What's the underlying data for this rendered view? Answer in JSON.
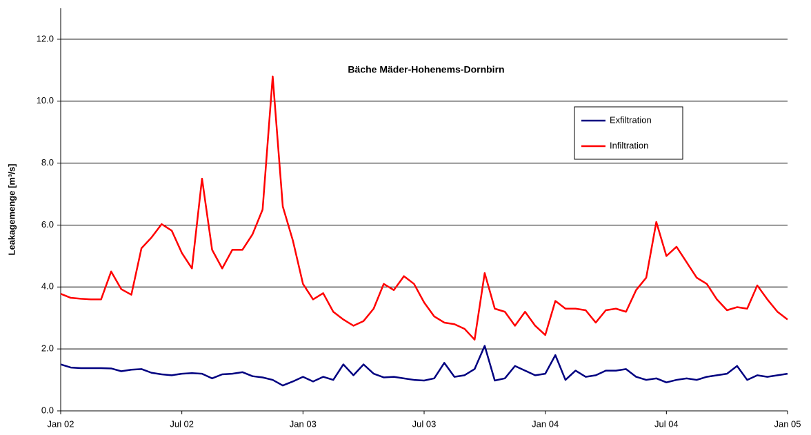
{
  "chart_data": {
    "type": "line",
    "title": "Bäche Mäder-Hohenems-Dornbirn",
    "y_label": "Leakagemenge [m³/s]",
    "x": [
      0,
      0.5,
      1,
      1.5,
      2,
      2.5,
      3,
      3.5,
      4,
      4.5,
      5,
      5.5,
      6,
      6.5,
      7,
      7.5,
      8,
      8.5,
      9,
      9.5,
      10,
      10.5,
      11,
      11.5,
      12,
      12.5,
      13,
      13.5,
      14,
      14.5,
      15,
      15.5,
      16,
      16.5,
      17,
      17.5,
      18,
      18.5,
      19,
      19.5,
      20,
      20.5,
      21,
      21.5,
      22,
      22.5,
      23,
      23.5,
      24,
      24.5,
      25,
      25.5,
      26,
      26.5,
      27,
      27.5,
      28,
      28.5,
      29,
      29.5,
      30,
      30.5,
      31,
      31.5,
      32,
      32.5,
      33,
      33.5,
      34,
      34.5,
      35,
      35.5,
      36
    ],
    "series": [
      {
        "name": "Exfiltration",
        "color": "#000080",
        "values": [
          1.5,
          1.4,
          1.38,
          1.38,
          1.38,
          1.37,
          1.28,
          1.33,
          1.35,
          1.23,
          1.18,
          1.15,
          1.2,
          1.22,
          1.2,
          1.05,
          1.18,
          1.2,
          1.25,
          1.12,
          1.08,
          1.0,
          0.82,
          0.95,
          1.1,
          0.95,
          1.1,
          1.0,
          1.5,
          1.15,
          1.5,
          1.2,
          1.08,
          1.1,
          1.05,
          1.0,
          0.98,
          1.05,
          1.55,
          1.1,
          1.15,
          1.35,
          2.1,
          0.98,
          1.05,
          1.45,
          1.3,
          1.15,
          1.2,
          1.8,
          1.0,
          1.3,
          1.1,
          1.15,
          1.3,
          1.3,
          1.35,
          1.1,
          1.0,
          1.05,
          0.92,
          1.0,
          1.05,
          1.0,
          1.1,
          1.15,
          1.2,
          1.45,
          1.0,
          1.15,
          1.1,
          1.15,
          1.2
        ]
      },
      {
        "name": "Infiltration",
        "color": "#ff0000",
        "values": [
          3.78,
          3.65,
          3.62,
          3.6,
          3.6,
          4.5,
          3.93,
          3.75,
          5.25,
          5.6,
          6.03,
          5.82,
          5.1,
          4.6,
          7.5,
          5.2,
          4.6,
          5.2,
          5.2,
          5.7,
          6.5,
          10.8,
          6.6,
          5.5,
          4.1,
          3.6,
          3.8,
          3.2,
          2.95,
          2.75,
          2.9,
          3.3,
          4.1,
          3.9,
          4.35,
          4.1,
          3.5,
          3.05,
          2.85,
          2.8,
          2.65,
          2.3,
          4.45,
          3.3,
          3.2,
          2.75,
          3.2,
          2.75,
          2.45,
          3.55,
          3.3,
          3.3,
          3.25,
          2.85,
          3.25,
          3.3,
          3.2,
          3.9,
          4.3,
          6.1,
          5.0,
          5.3,
          4.8,
          4.3,
          4.1,
          3.6,
          3.25,
          3.35,
          3.3,
          4.05,
          3.6,
          3.2,
          2.95
        ]
      }
    ],
    "xlim": [
      0,
      36
    ],
    "xticks": [
      {
        "value": 0,
        "label": "Jan 02"
      },
      {
        "value": 6,
        "label": "Jul 02"
      },
      {
        "value": 12,
        "label": "Jan 03"
      },
      {
        "value": 18,
        "label": "Jul 03"
      },
      {
        "value": 24,
        "label": "Jan 04"
      },
      {
        "value": 30,
        "label": "Jul 04"
      },
      {
        "value": 36,
        "label": "Jan 05"
      }
    ],
    "ylim": [
      0,
      13
    ],
    "yticks": [
      {
        "value": 0,
        "label": "0.0"
      },
      {
        "value": 2,
        "label": "2.0"
      },
      {
        "value": 4,
        "label": "4.0"
      },
      {
        "value": 6,
        "label": "6.0"
      },
      {
        "value": 8,
        "label": "8.0"
      },
      {
        "value": 10,
        "label": "10.0"
      },
      {
        "value": 12,
        "label": "12.0"
      }
    ],
    "grid": true
  }
}
